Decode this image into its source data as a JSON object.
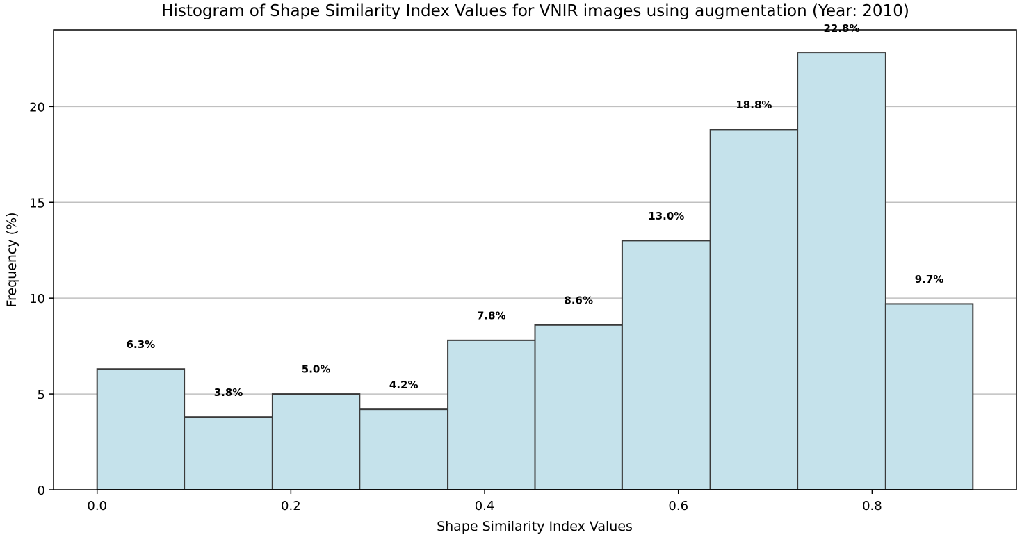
{
  "chart_data": {
    "type": "bar",
    "title": "Histogram of Shape Similarity Index Values for VNIR images using augmentation (Year: 2010)",
    "xlabel": "Shape Similarity Index Values",
    "ylabel": "Frequency (%)",
    "bins": [
      {
        "x0": 0.0,
        "x1": 0.09,
        "value": 6.3,
        "label": "6.3%"
      },
      {
        "x0": 0.09,
        "x1": 0.181,
        "value": 3.8,
        "label": "3.8%"
      },
      {
        "x0": 0.181,
        "x1": 0.271,
        "value": 5.0,
        "label": "5.0%"
      },
      {
        "x0": 0.271,
        "x1": 0.362,
        "value": 4.2,
        "label": "4.2%"
      },
      {
        "x0": 0.362,
        "x1": 0.452,
        "value": 7.8,
        "label": "7.8%"
      },
      {
        "x0": 0.452,
        "x1": 0.542,
        "value": 8.6,
        "label": "8.6%"
      },
      {
        "x0": 0.542,
        "x1": 0.633,
        "value": 13.0,
        "label": "13.0%"
      },
      {
        "x0": 0.633,
        "x1": 0.723,
        "value": 18.8,
        "label": "18.8%"
      },
      {
        "x0": 0.723,
        "x1": 0.814,
        "value": 22.8,
        "label": "22.8%"
      },
      {
        "x0": 0.814,
        "x1": 0.904,
        "value": 9.7,
        "label": "9.7%"
      }
    ],
    "xlim": [
      -0.045,
      0.949
    ],
    "ylim": [
      0,
      24
    ],
    "xticks": [
      0.0,
      0.2,
      0.4,
      0.6,
      0.8
    ],
    "xtick_labels": [
      "0.0",
      "0.2",
      "0.4",
      "0.6",
      "0.8"
    ],
    "yticks": [
      0,
      5,
      10,
      15,
      20
    ],
    "ytick_labels": [
      "0",
      "5",
      "10",
      "15",
      "20"
    ],
    "grid": "y",
    "legend": "none",
    "colors": {
      "bar_fill": "#c5e2eb",
      "bar_edge": "#3a3a3a",
      "grid": "#c0c0c0",
      "axis": "#000000"
    }
  }
}
